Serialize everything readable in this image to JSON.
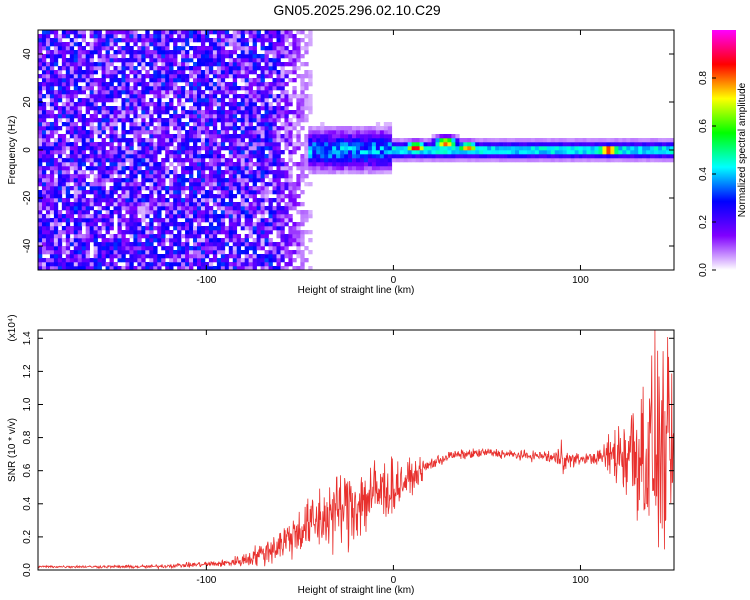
{
  "title": "GN05.2025.296.02.10.C29",
  "chart_data": [
    {
      "type": "heatmap",
      "xlabel": "Height of straight line (km)",
      "ylabel": "Frequency (Hz)",
      "xlim": [
        -190,
        150
      ],
      "ylim": [
        -50,
        50
      ],
      "x_ticks": [
        -100,
        0,
        100
      ],
      "y_ticks": [
        -40,
        -20,
        0,
        20,
        40
      ],
      "colorbar": {
        "label": "Normalized spectral amplitude",
        "range": [
          0,
          1
        ],
        "ticks": [
          0.0,
          0.2,
          0.4,
          0.6,
          0.8
        ],
        "colormap": [
          "#ffffff",
          "#8000ff",
          "#0000ff",
          "#00ffff",
          "#00ff00",
          "#ffff00",
          "#ff0000",
          "#ff00ff"
        ]
      },
      "features": {
        "noise_region_x": [
          -190,
          -40
        ],
        "noise_level": 0.25,
        "signal_band_center_hz": 0,
        "signal_start_x": -45,
        "peaks": [
          {
            "x": 12,
            "y": 1,
            "amp": 0.9
          },
          {
            "x": 28,
            "y": 3,
            "amp": 0.85
          },
          {
            "x": 40,
            "y": 1,
            "amp": 0.8
          },
          {
            "x": 115,
            "y": 0,
            "amp": 0.95
          }
        ]
      }
    },
    {
      "type": "line",
      "xlabel": "Height of straight line (km)",
      "ylabel": "SNR (10 * v/v)",
      "y_multiplier": "(x10⁴)",
      "xlim": [
        -190,
        150
      ],
      "ylim": [
        0,
        1.45
      ],
      "x_ticks": [
        -100,
        0,
        100
      ],
      "y_ticks": [
        0.0,
        0.2,
        0.4,
        0.6,
        0.8,
        1.0,
        1.2,
        1.4
      ],
      "color": "#e8302d",
      "series": [
        {
          "x": [
            -190,
            -170,
            -150,
            -130,
            -110,
            -90,
            -80,
            -70,
            -60,
            -50,
            -40,
            -30,
            -20,
            -10,
            0,
            10,
            20,
            30,
            40,
            50,
            60,
            70,
            80,
            88,
            90,
            92,
            100,
            110,
            120,
            130,
            140,
            150
          ],
          "y": [
            0.02,
            0.02,
            0.02,
            0.02,
            0.03,
            0.04,
            0.06,
            0.1,
            0.16,
            0.24,
            0.3,
            0.36,
            0.4,
            0.46,
            0.5,
            0.56,
            0.64,
            0.69,
            0.7,
            0.71,
            0.7,
            0.69,
            0.69,
            0.67,
            0.72,
            0.66,
            0.67,
            0.68,
            0.7,
            0.72,
            0.72,
            0.7
          ],
          "noise": [
            0.005,
            0.005,
            0.006,
            0.008,
            0.01,
            0.015,
            0.03,
            0.05,
            0.08,
            0.1,
            0.14,
            0.16,
            0.18,
            0.16,
            0.12,
            0.06,
            0.03,
            0.02,
            0.02,
            0.02,
            0.02,
            0.02,
            0.02,
            0.05,
            0.08,
            0.05,
            0.02,
            0.03,
            0.15,
            0.3,
            0.45,
            0.35
          ]
        }
      ]
    }
  ]
}
